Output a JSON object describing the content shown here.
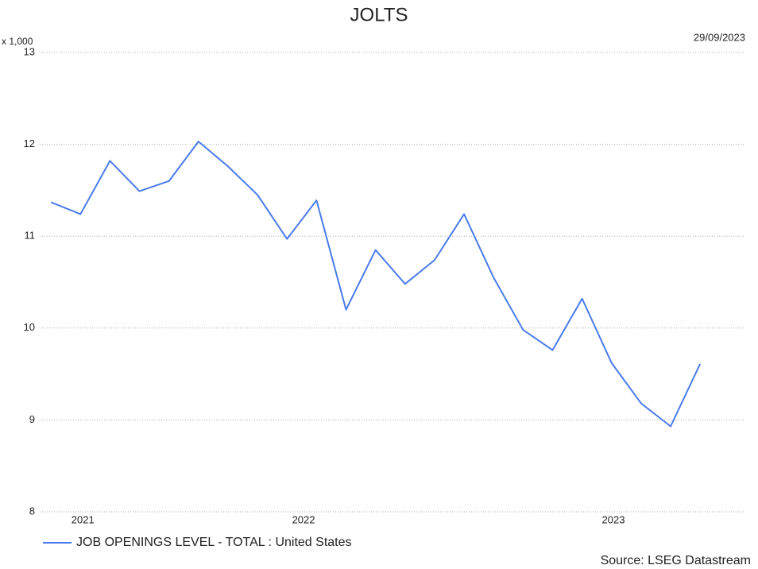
{
  "chart_data": {
    "type": "line",
    "title": "JOLTS",
    "subtitle": "29/09/2023",
    "y_unit": "x 1,000",
    "source": "Source: LSEG Datastream",
    "categories": [
      null,
      null,
      null,
      null,
      null,
      null,
      null,
      null,
      null,
      null,
      null,
      null,
      null,
      null,
      null,
      null,
      null,
      null,
      null,
      null,
      null,
      null,
      null
    ],
    "series": [
      {
        "name": "JOB OPENINGS LEVEL - TOTAL : United States",
        "color": "#4a7bea",
        "values": [
          11.37,
          11.24,
          11.82,
          11.49,
          11.6,
          12.03,
          11.76,
          11.45,
          10.97,
          11.39,
          10.2,
          10.85,
          10.48,
          10.74,
          11.24,
          10.55,
          9.98,
          9.76,
          10.32,
          9.62,
          9.18,
          8.93,
          9.61
        ]
      }
    ],
    "xlim": [
      -0.38,
      23.53
    ],
    "xticks": [
      {
        "value": 1.08,
        "label": "2021"
      },
      {
        "value": 8.56,
        "label": "2022"
      },
      {
        "value": 19.06,
        "label": "2023"
      }
    ],
    "ylim": [
      8,
      13
    ],
    "yticks": [
      8,
      9,
      10,
      11,
      12,
      13
    ],
    "grid": true,
    "legend": "bottom-left"
  }
}
